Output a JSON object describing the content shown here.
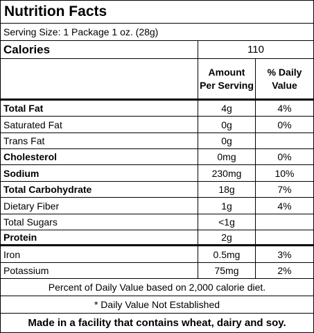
{
  "title": "Nutrition Facts",
  "serving_size": "Serving Size: 1 Package 1 oz. (28g)",
  "calories": {
    "label": "Calories",
    "value": "110"
  },
  "headers": {
    "amount": "Amount\nPer Serving",
    "amount_line1": "Amount",
    "amount_line2": "Per Serving",
    "dv_line1": "% Daily",
    "dv_line2": "Value"
  },
  "rows": [
    {
      "label": "Total Fat",
      "amount": "4g",
      "dv": "4%",
      "bold": true
    },
    {
      "label": "Saturated Fat",
      "amount": "0g",
      "dv": "0%",
      "bold": false
    },
    {
      "label": "Trans Fat",
      "amount": "0g",
      "dv": "",
      "bold": false
    },
    {
      "label": "Cholesterol",
      "amount": "0mg",
      "dv": "0%",
      "bold": true
    },
    {
      "label": "Sodium",
      "amount": "230mg",
      "dv": "10%",
      "bold": true
    },
    {
      "label": "Total Carbohydrate",
      "amount": "18g",
      "dv": "7%",
      "bold": true
    },
    {
      "label": "Dietary Fiber",
      "amount": "1g",
      "dv": "4%",
      "bold": false
    },
    {
      "label": "Total Sugars",
      "amount": "<1g",
      "dv": "",
      "bold": false
    },
    {
      "label": "Protein",
      "amount": "2g",
      "dv": "",
      "bold": true
    },
    {
      "label": "Iron",
      "amount": "0.5mg",
      "dv": "3%",
      "bold": false
    },
    {
      "label": "Potassium",
      "amount": "75mg",
      "dv": "2%",
      "bold": false
    }
  ],
  "footnote_dv": "Percent of Daily Value based on 2,000 calorie diet.",
  "footnote_na": "* Daily Value Not Established",
  "allergen": "Made in a facility that contains wheat, dairy and soy."
}
